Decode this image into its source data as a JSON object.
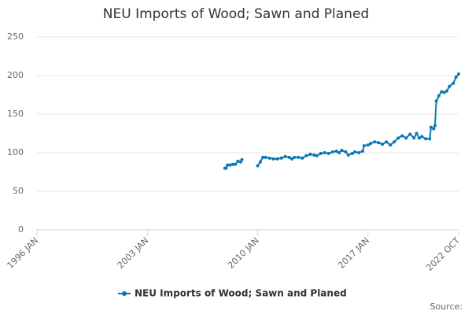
{
  "chart_data": {
    "type": "line",
    "title": "NEU Imports of Wood; Sawn and Planed",
    "source": "Source:",
    "x": [
      "2007 DEC",
      "2008 JAN",
      "2008 FEB",
      "2008 APR",
      "2008 JUN",
      "2008 AUG",
      "2008 OCT",
      "2008 DEC",
      "2009 JAN",
      "2009 JUL",
      "2010 JAN",
      "2010 MAR",
      "2010 MAY",
      "2010 JUL",
      "2010 OCT",
      "2011 JAN",
      "2011 APR",
      "2011 JUL",
      "2011 OCT",
      "2012 JAN",
      "2012 MAR",
      "2012 MAY",
      "2012 AUG",
      "2012 NOV",
      "2013 FEB",
      "2013 MAY",
      "2013 AUG",
      "2013 OCT",
      "2014 JAN",
      "2014 APR",
      "2014 JUL",
      "2014 OCT",
      "2015 JAN",
      "2015 MAR",
      "2015 MAY",
      "2015 AUG",
      "2015 OCT",
      "2016 JAN",
      "2016 MAR",
      "2016 JUN",
      "2016 SEP",
      "2016 OCT",
      "2017 JAN",
      "2017 MAR",
      "2017 JUN",
      "2017 SEP",
      "2017 DEC",
      "2018 MAR",
      "2018 JUN",
      "2018 SEP",
      "2018 DEC",
      "2019 MAR",
      "2019 JUN",
      "2019 SEP",
      "2019 DEC",
      "2020 FEB",
      "2020 APR",
      "2020 JUN",
      "2020 SEP",
      "2020 DEC",
      "2021 JAN",
      "2021 MAR",
      "2021 APR",
      "2021 MAY",
      "2021 JUL",
      "2021 SEP",
      "2021 NOV",
      "2022 JAN",
      "2022 MAR",
      "2022 JUN",
      "2022 AUG",
      "2022 OCT"
    ],
    "series": [
      {
        "name": "NEU Imports of Wood; Sawn and Planed",
        "color": "#0a77b5",
        "values": [
          80,
          80,
          84,
          84,
          85,
          85,
          89,
          88,
          91,
          null,
          83,
          88,
          94,
          94,
          93,
          92,
          92,
          93,
          95,
          94,
          92,
          94,
          94,
          93,
          96,
          98,
          97,
          96,
          99,
          100,
          99,
          101,
          102,
          100,
          103,
          101,
          97,
          99,
          101,
          100,
          102,
          109,
          110,
          112,
          114,
          113,
          111,
          114,
          110,
          114,
          119,
          122,
          119,
          124,
          119,
          125,
          119,
          121,
          118,
          118,
          133,
          131,
          135,
          167,
          174,
          179,
          178,
          180,
          186,
          190,
          198,
          202
        ]
      }
    ],
    "xlim": [
      "1996 JAN",
      "2022 OCT"
    ],
    "xticks": [
      "1996 JAN",
      "2003 JAN",
      "2010 JAN",
      "2017 JAN",
      "2022 OCT"
    ],
    "ylim": [
      0,
      250
    ],
    "yticks": [
      0,
      50,
      100,
      150,
      200,
      250
    ],
    "grid": true,
    "legend": "bottom"
  }
}
